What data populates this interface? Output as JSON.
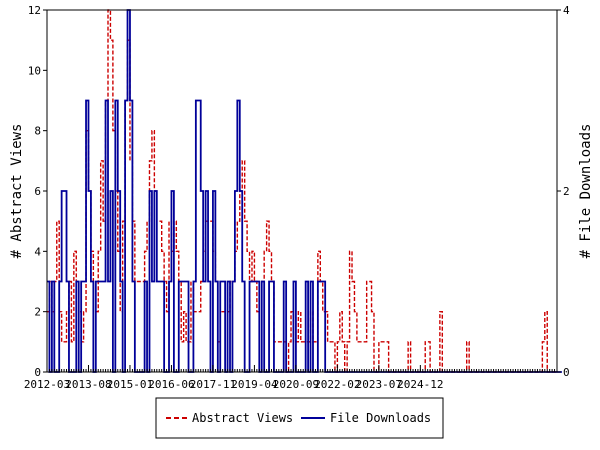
{
  "chart_data": {
    "type": "line",
    "ylabel": "# Abstract Views",
    "y2label": "# File Downloads",
    "ylim": [
      0,
      12
    ],
    "y2lim": [
      0,
      4
    ],
    "x_tick_labels": [
      "2012-03",
      "2013-08",
      "2015-01",
      "2016-06",
      "2017-11",
      "2019-04",
      "2020-09",
      "2022-02",
      "2023-07",
      "2024-12"
    ],
    "y_ticks": [
      "0",
      "2",
      "4",
      "6",
      "8",
      "10",
      "12"
    ],
    "y2_ticks": [
      "0",
      "2",
      "4"
    ],
    "legend_position": "bottom",
    "series": [
      {
        "name": "Abstract Views",
        "axis": "left",
        "color": "#cc0000",
        "style": "dashed",
        "values": [
          2,
          3,
          2,
          3,
          5,
          2,
          1,
          1,
          2,
          3,
          1,
          4,
          3,
          2,
          1,
          2,
          8,
          6,
          4,
          3,
          2,
          4,
          7,
          5,
          9,
          12,
          11,
          8,
          6,
          4,
          2,
          5,
          9,
          11,
          7,
          5,
          3,
          3,
          3,
          3,
          4,
          5,
          7,
          8,
          6,
          5,
          5,
          4,
          3,
          2,
          5,
          4,
          5,
          4,
          3,
          1,
          2,
          1,
          1,
          3,
          2,
          2,
          2,
          3,
          4,
          5,
          5,
          5,
          4,
          3,
          1,
          2,
          2,
          2,
          2,
          3,
          3,
          4,
          5,
          6,
          7,
          5,
          4,
          3,
          4,
          3,
          2,
          1,
          3,
          4,
          5,
          4,
          3,
          1,
          1,
          1,
          1,
          1,
          0,
          1,
          2,
          1,
          1,
          2,
          1,
          1,
          1,
          1,
          2,
          1,
          1,
          4,
          3,
          2,
          2,
          1,
          1,
          1,
          0,
          1,
          2,
          1,
          0,
          1,
          4,
          3,
          2,
          1,
          1,
          1,
          1,
          3,
          3,
          2,
          0,
          0,
          1,
          1,
          1,
          1,
          0,
          0,
          0,
          0,
          0,
          0,
          0,
          0,
          1,
          0,
          0,
          0,
          0,
          0,
          0,
          1,
          1,
          0,
          0,
          0,
          0,
          2,
          0,
          0,
          0,
          0,
          0,
          0,
          0,
          0,
          0,
          0,
          1,
          0,
          0,
          0,
          0,
          0,
          0,
          0,
          0,
          0,
          0,
          0,
          0,
          0,
          0,
          0,
          0,
          0,
          0,
          0,
          0,
          0,
          0,
          0,
          0,
          0,
          0,
          0,
          0,
          0,
          0,
          1,
          2,
          0,
          0,
          0,
          0,
          0
        ]
      },
      {
        "name": "File Downloads",
        "axis": "right",
        "color": "#000099",
        "style": "solid",
        "values": [
          1,
          0,
          1,
          0,
          0,
          1,
          2,
          2,
          1,
          0,
          0,
          0,
          1,
          0,
          1,
          1,
          3,
          2,
          1,
          0,
          1,
          1,
          1,
          1,
          3,
          1,
          2,
          0,
          3,
          2,
          1,
          0,
          3,
          4,
          3,
          1,
          0,
          0,
          0,
          0,
          1,
          0,
          2,
          1,
          2,
          1,
          1,
          1,
          0,
          0,
          1,
          2,
          0,
          0,
          1,
          1,
          1,
          1,
          0,
          0,
          1,
          3,
          3,
          2,
          1,
          2,
          1,
          0,
          2,
          1,
          0,
          1,
          1,
          0,
          1,
          0,
          1,
          2,
          3,
          2,
          1,
          0,
          0,
          1,
          1,
          1,
          1,
          0,
          1,
          0,
          0,
          1,
          1,
          0,
          0,
          0,
          0,
          1,
          0,
          0,
          0,
          1,
          0,
          0,
          0,
          0,
          1,
          0,
          1,
          0,
          0,
          1,
          1,
          1,
          0,
          0,
          0,
          0,
          0,
          0,
          0,
          0,
          0,
          0,
          0,
          0,
          0,
          0,
          0,
          0,
          0,
          0,
          0,
          0,
          0,
          0,
          0,
          0,
          0,
          0,
          0,
          0,
          0,
          0,
          0,
          0,
          0,
          0,
          0,
          0,
          0,
          0,
          0,
          0,
          0,
          0,
          0,
          0,
          0,
          0,
          0,
          0,
          0,
          0,
          0,
          0,
          0,
          0,
          0,
          0,
          0,
          0,
          0,
          0,
          0,
          0,
          0,
          0,
          0,
          0,
          0,
          0,
          0,
          0,
          0,
          0,
          0,
          0,
          0,
          0,
          0,
          0,
          0,
          0,
          0,
          0,
          0,
          0,
          0,
          0,
          0,
          0,
          0,
          0,
          0,
          0,
          0,
          0,
          0,
          0,
          0,
          0
        ]
      }
    ]
  }
}
